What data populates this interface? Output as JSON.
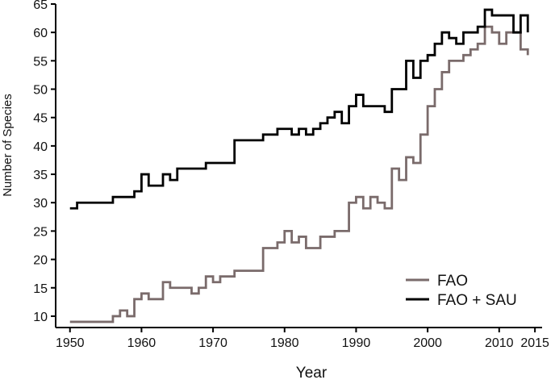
{
  "chart_data": {
    "type": "line",
    "step": true,
    "title": "",
    "xlabel": "Year",
    "ylabel": "Number of Species",
    "xlim": [
      1948,
      2016
    ],
    "ylim": [
      8,
      65
    ],
    "xticks": [
      "1950",
      "1960",
      "1970",
      "1980",
      "1990",
      "2000",
      "2010",
      "2015"
    ],
    "yticks": [
      "10",
      "15",
      "20",
      "25",
      "30",
      "35",
      "40",
      "45",
      "50",
      "55",
      "60",
      "65"
    ],
    "grid": false,
    "legend_position": "bottom-right",
    "series": [
      {
        "name": "FAO",
        "color": "#7a6b6b",
        "x": [
          1950,
          1951,
          1952,
          1953,
          1954,
          1955,
          1956,
          1957,
          1958,
          1959,
          1960,
          1961,
          1962,
          1963,
          1964,
          1965,
          1966,
          1967,
          1968,
          1969,
          1970,
          1971,
          1972,
          1973,
          1974,
          1975,
          1976,
          1977,
          1978,
          1979,
          1980,
          1981,
          1982,
          1983,
          1984,
          1985,
          1986,
          1987,
          1988,
          1989,
          1990,
          1991,
          1992,
          1993,
          1994,
          1995,
          1996,
          1997,
          1998,
          1999,
          2000,
          2001,
          2002,
          2003,
          2004,
          2005,
          2006,
          2007,
          2008,
          2009,
          2010,
          2011,
          2012,
          2013,
          2014
        ],
        "y": [
          9,
          9,
          9,
          9,
          9,
          9,
          10,
          11,
          10,
          13,
          14,
          13,
          13,
          16,
          15,
          15,
          15,
          14,
          15,
          17,
          16,
          17,
          17,
          18,
          18,
          18,
          18,
          22,
          22,
          23,
          25,
          23,
          24,
          22,
          22,
          24,
          24,
          25,
          25,
          30,
          31,
          29,
          31,
          30,
          29,
          36,
          34,
          38,
          37,
          42,
          47,
          50,
          53,
          55,
          55,
          56,
          57,
          58,
          61,
          60,
          58,
          60,
          60,
          57,
          56
        ]
      },
      {
        "name": "FAO + SAU",
        "color": "#000000",
        "x": [
          1950,
          1951,
          1952,
          1953,
          1954,
          1955,
          1956,
          1957,
          1958,
          1959,
          1960,
          1961,
          1962,
          1963,
          1964,
          1965,
          1966,
          1967,
          1968,
          1969,
          1970,
          1971,
          1972,
          1973,
          1974,
          1975,
          1976,
          1977,
          1978,
          1979,
          1980,
          1981,
          1982,
          1983,
          1984,
          1985,
          1986,
          1987,
          1988,
          1989,
          1990,
          1991,
          1992,
          1993,
          1994,
          1995,
          1996,
          1997,
          1998,
          1999,
          2000,
          2001,
          2002,
          2003,
          2004,
          2005,
          2006,
          2007,
          2008,
          2009,
          2010,
          2011,
          2012,
          2013,
          2014
        ],
        "y": [
          29,
          30,
          30,
          30,
          30,
          30,
          31,
          31,
          31,
          32,
          35,
          33,
          33,
          35,
          34,
          36,
          36,
          36,
          36,
          37,
          37,
          37,
          37,
          41,
          41,
          41,
          41,
          42,
          42,
          43,
          43,
          42,
          43,
          42,
          43,
          44,
          45,
          46,
          44,
          47,
          49,
          47,
          47,
          47,
          46,
          50,
          50,
          55,
          52,
          55,
          56,
          58,
          60,
          59,
          58,
          60,
          60,
          61,
          64,
          63,
          63,
          63,
          60,
          63,
          60
        ]
      }
    ]
  }
}
